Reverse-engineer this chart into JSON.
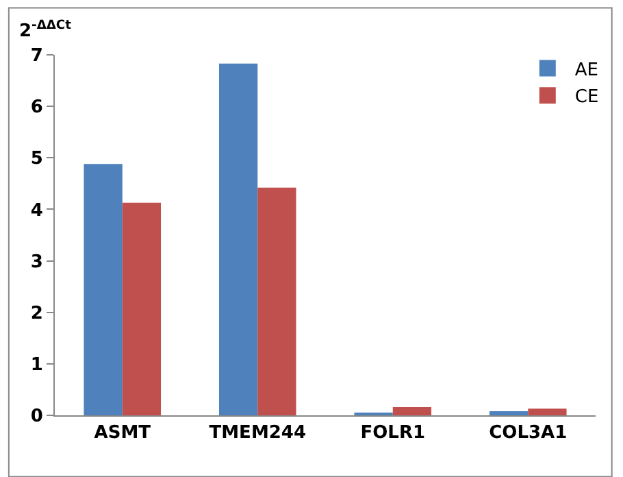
{
  "chart_data": {
    "type": "bar",
    "ylabel": "2$^{-ΔΔCt}$",
    "categories": [
      "ASMT",
      "TMEM244",
      "FOLR1",
      "COL3A1"
    ],
    "series": [
      {
        "name": "AE",
        "color": "#4f81bd",
        "values": [
          4.88,
          6.83,
          0.05,
          0.08
        ]
      },
      {
        "name": "CE",
        "color": "#c0504d",
        "values": [
          4.13,
          4.42,
          0.16,
          0.13
        ]
      }
    ],
    "ylim": [
      0,
      7
    ],
    "yticks": [
      0,
      1,
      2,
      3,
      4,
      5,
      6,
      7
    ],
    "legend": "top right"
  }
}
